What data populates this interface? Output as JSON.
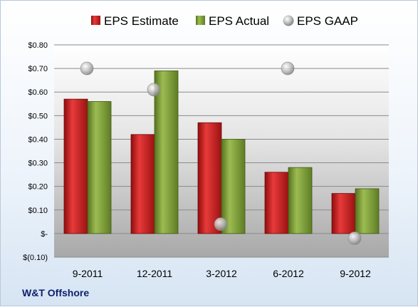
{
  "company": "W&T Offshore",
  "colors": {
    "estimate": "#cc1f1f",
    "actual": "#7fa038",
    "gaap": "#a9a9a9"
  },
  "chart_data": {
    "type": "bar",
    "categories": [
      "9-2011",
      "12-2011",
      "3-2012",
      "6-2012",
      "9-2012"
    ],
    "series": [
      {
        "name": "EPS Estimate",
        "values": [
          0.57,
          0.42,
          0.47,
          0.26,
          0.17
        ]
      },
      {
        "name": "EPS Actual",
        "values": [
          0.56,
          0.69,
          0.4,
          0.28,
          0.19
        ]
      },
      {
        "name": "EPS GAAP",
        "type": "scatter",
        "values": [
          0.7,
          0.61,
          0.04,
          0.7,
          -0.02
        ]
      }
    ],
    "ylim": [
      -0.1,
      0.8
    ],
    "yticks": [
      -0.1,
      0.0,
      0.1,
      0.2,
      0.3,
      0.4,
      0.5,
      0.6,
      0.7,
      0.8
    ],
    "ytick_labels": [
      "$(0.10)",
      "$-",
      "$0.10",
      "$0.20",
      "$0.30",
      "$0.40",
      "$0.50",
      "$0.60",
      "$0.70",
      "$0.80"
    ],
    "grid": true,
    "legend": "top"
  }
}
